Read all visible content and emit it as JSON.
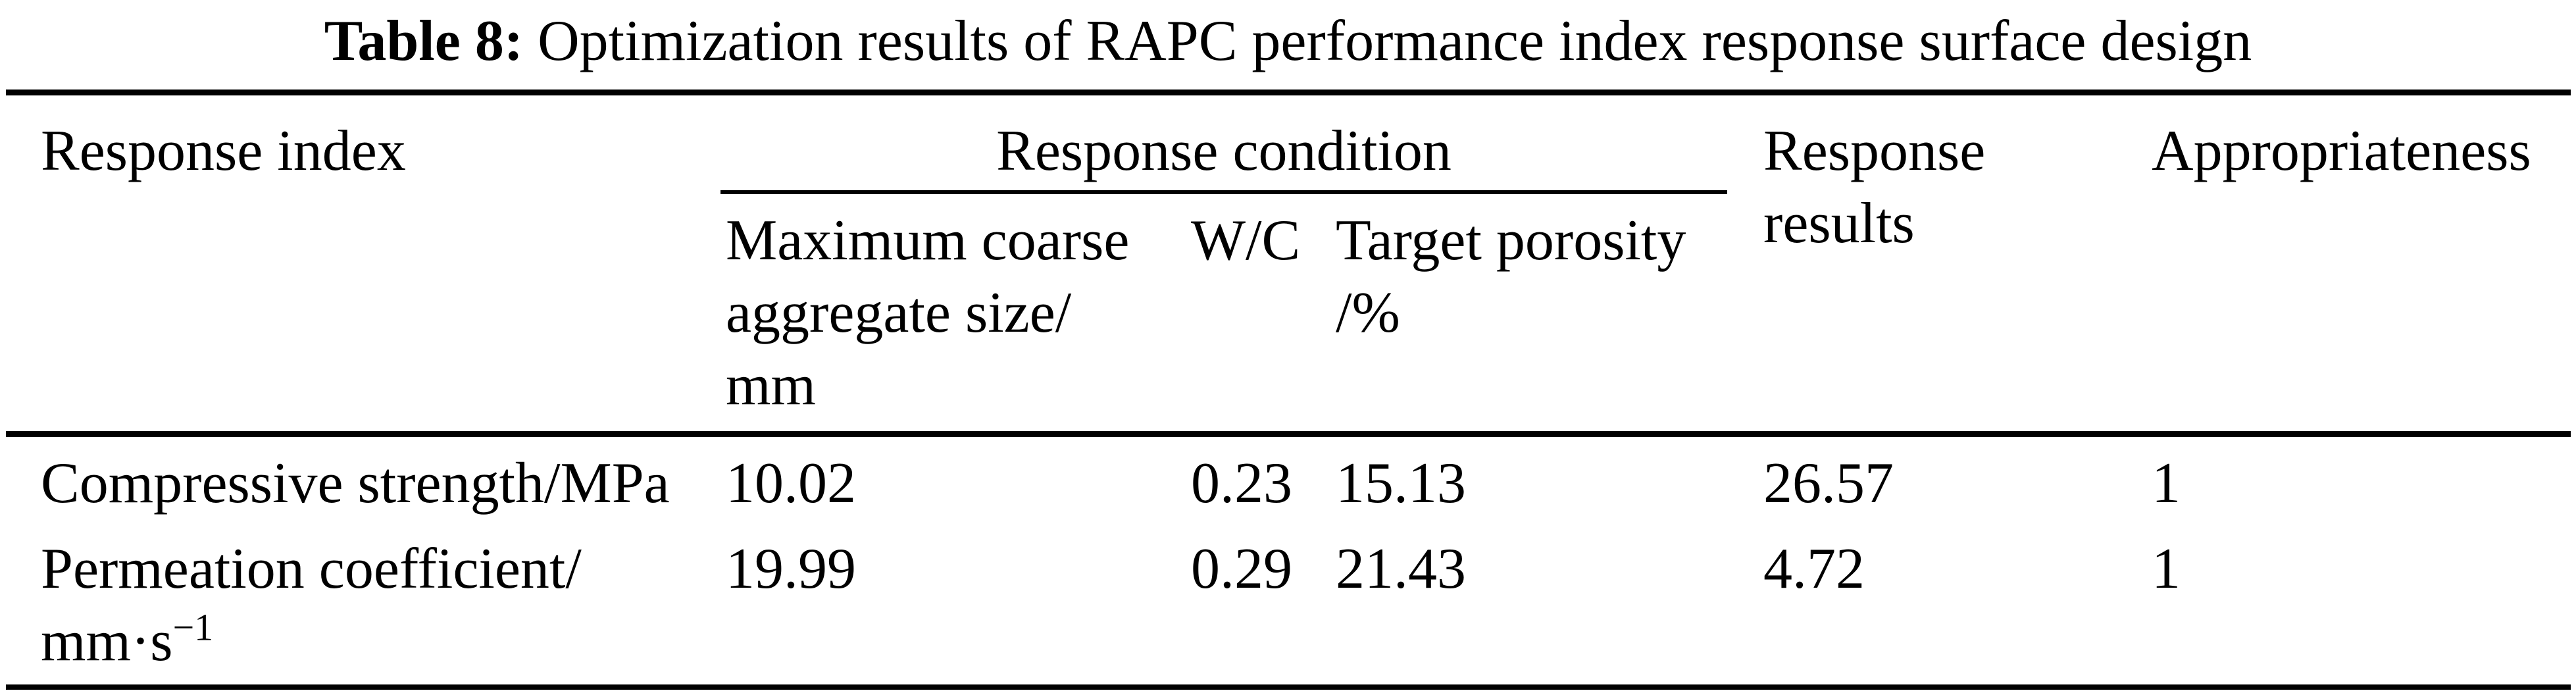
{
  "caption": {
    "label": "Table 8:",
    "title": "Optimization results of RAPC performance index response surface design"
  },
  "table": {
    "headers": {
      "response_index": "Response index",
      "response_condition": "Response condition",
      "response_results": "Response results",
      "appropriateness": "Appropriateness",
      "condition_sub": [
        "Maximum coarse aggregate size/\nmm",
        "W/C",
        "Target porosity\n/%"
      ]
    },
    "rows": [
      {
        "index": "Compressive strength/MPa",
        "index_sup": "",
        "max_aggregate_size": "10.02",
        "wc": "0.23",
        "target_porosity": "15.13",
        "response_result": "26.57",
        "appropriateness": "1"
      },
      {
        "index": "Permeation coefficient/\nmm·s",
        "index_sup": "−1",
        "max_aggregate_size": "19.99",
        "wc": "0.29",
        "target_porosity": "21.43",
        "response_result": "4.72",
        "appropriateness": "1"
      }
    ]
  },
  "colors": {
    "text": "#000000",
    "background": "#ffffff",
    "rule": "#000000"
  }
}
